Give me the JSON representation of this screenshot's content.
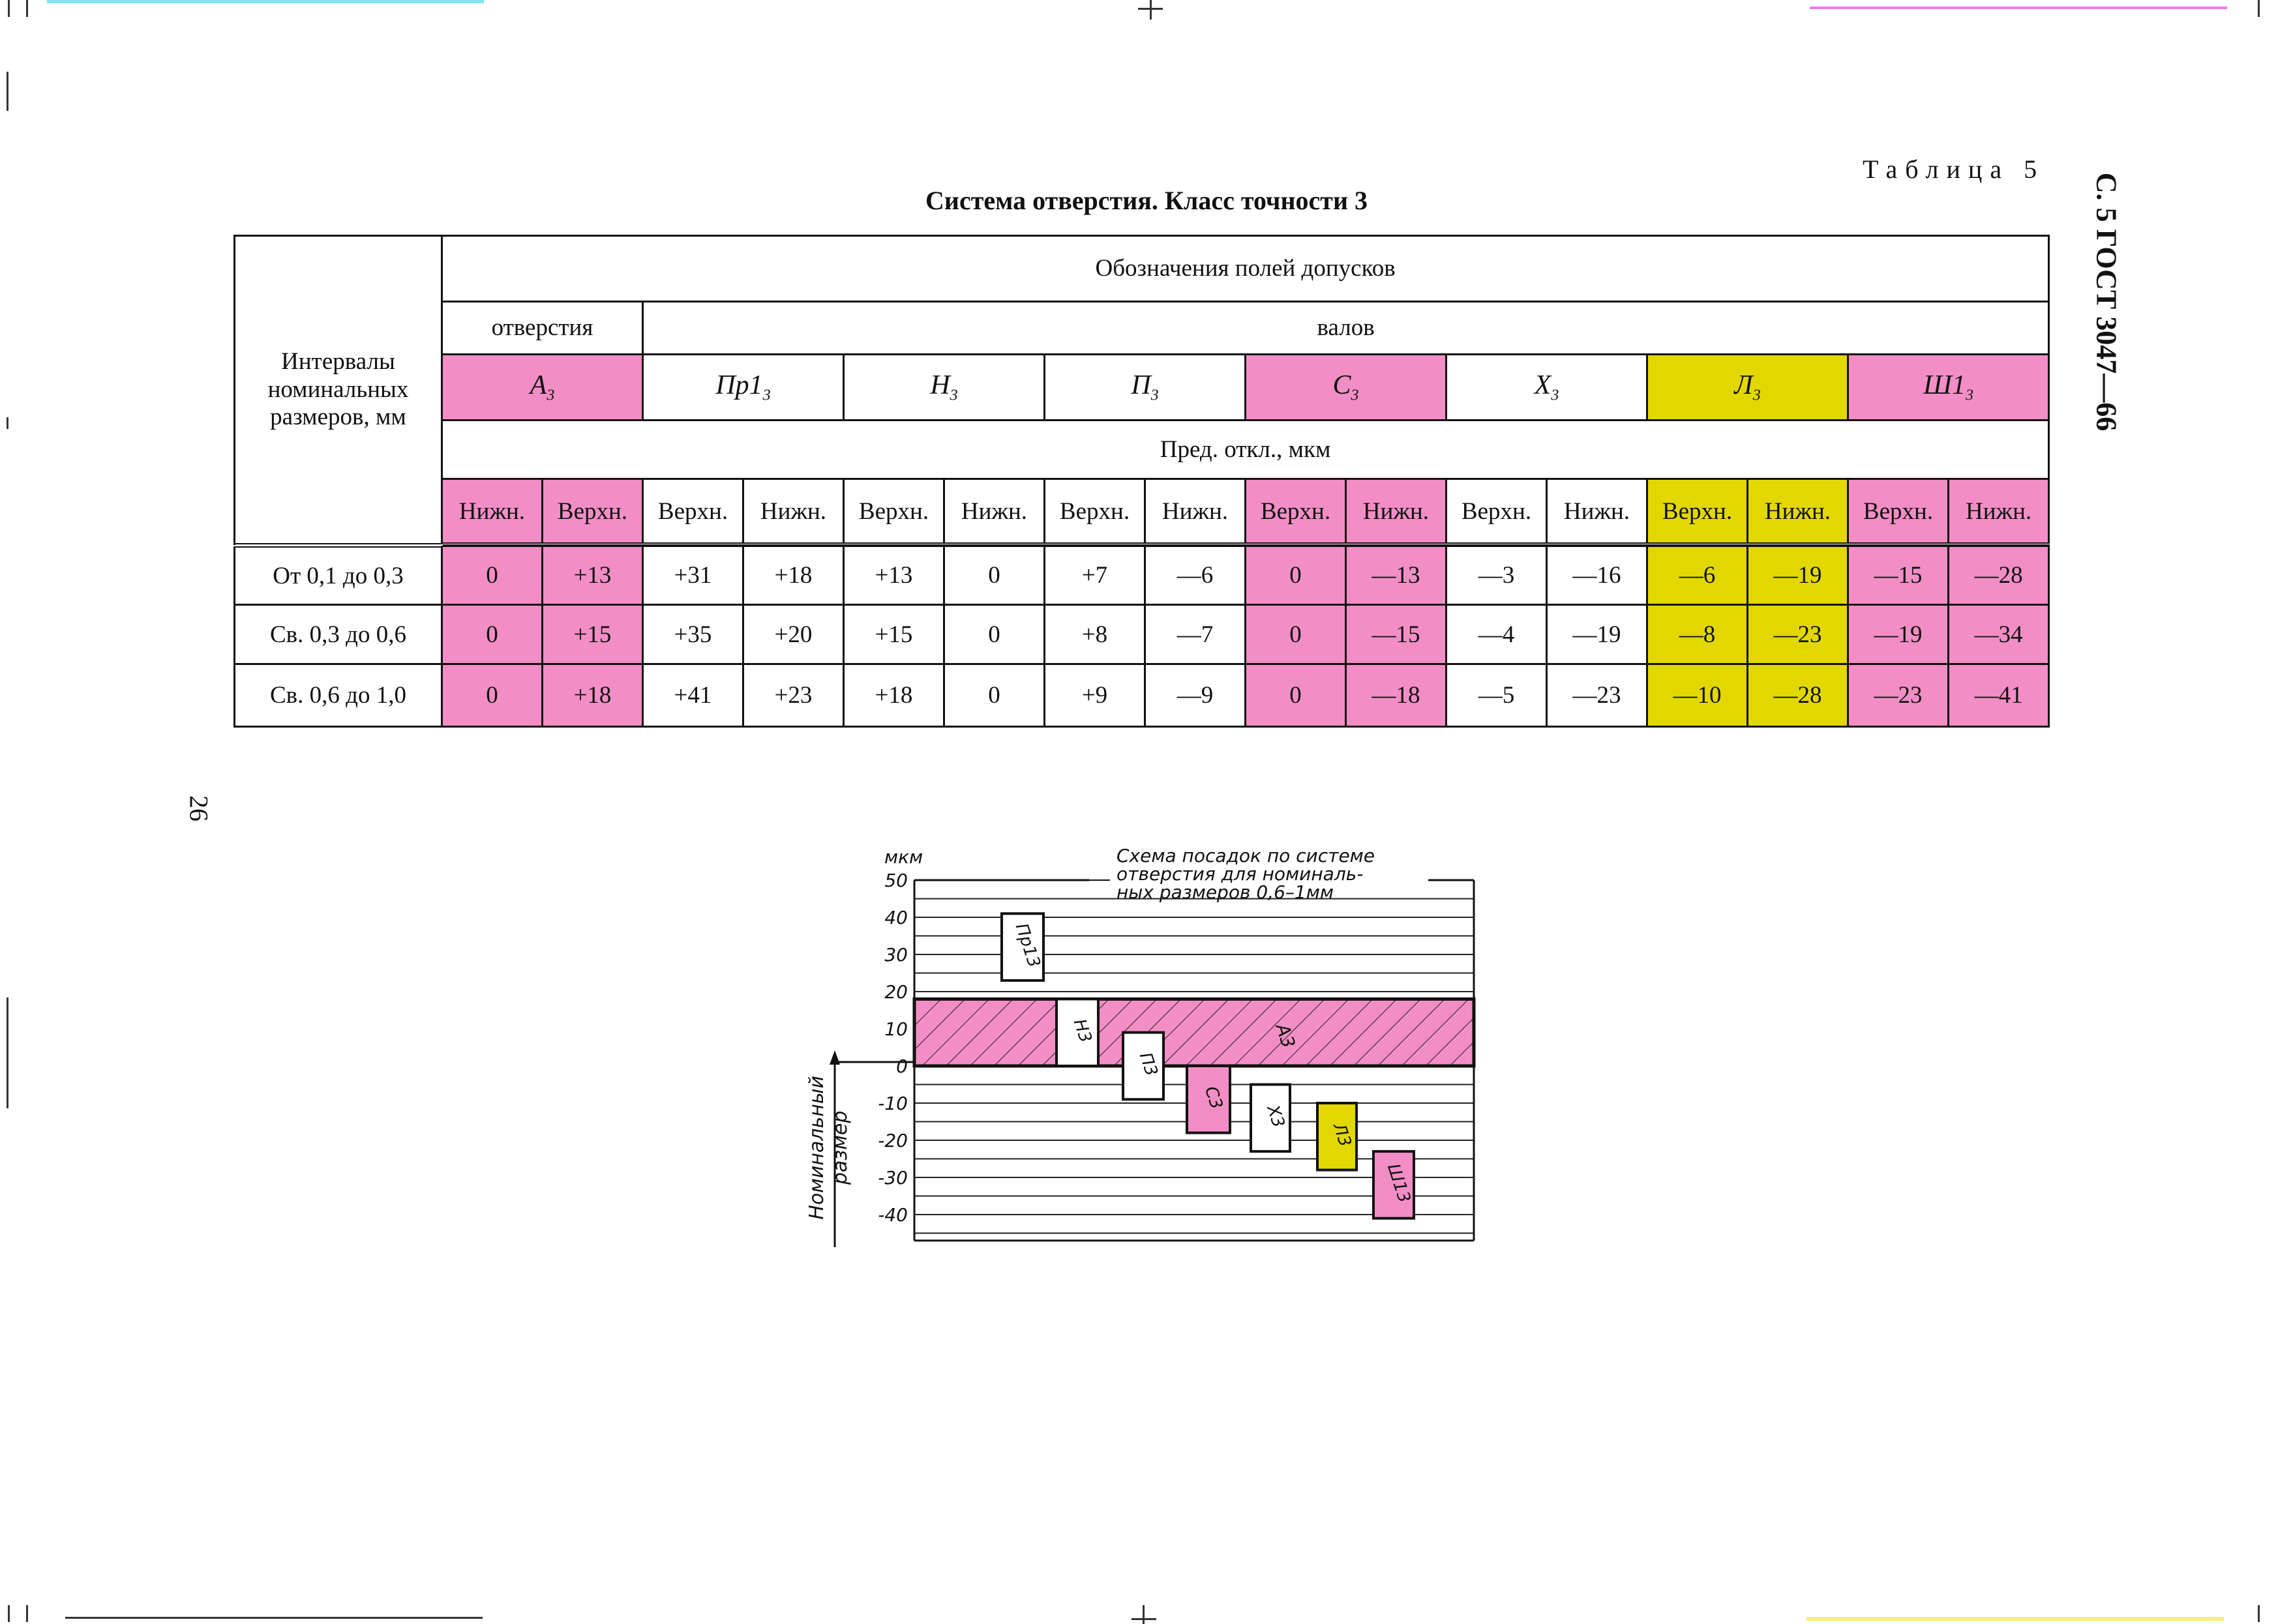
{
  "header": {
    "table_label": "Таблица 5",
    "title": "Система отверстия. Класс точности 3",
    "page_ref": "С. 5 ГОСТ 3047—66",
    "page_number": "26"
  },
  "table": {
    "row_header": "Интервалы номинальных размеров, мм",
    "group_header": "Обозначения полей допусков",
    "holes_header": "отверстия",
    "shafts_header": "валов",
    "fields": [
      {
        "base": "A",
        "sub": "3",
        "color": "#f28ec5"
      },
      {
        "base": "Пр1",
        "sub": "3",
        "color": "#ffffff"
      },
      {
        "base": "Н",
        "sub": "3",
        "color": "#ffffff"
      },
      {
        "base": "П",
        "sub": "3",
        "color": "#ffffff"
      },
      {
        "base": "С",
        "sub": "3",
        "color": "#f28ec5"
      },
      {
        "base": "Х",
        "sub": "3",
        "color": "#ffffff"
      },
      {
        "base": "Л",
        "sub": "3",
        "color": "#e2d800"
      },
      {
        "base": "Ш1",
        "sub": "3",
        "color": "#f28ec5"
      }
    ],
    "deviations_header": "Пред. откл., мкм",
    "sub_headers": [
      "Нижн.",
      "Верхн.",
      "Верхн.",
      "Нижн.",
      "Верхн.",
      "Нижн.",
      "Верхн.",
      "Нижн.",
      "Верхн.",
      "Нижн.",
      "Верхн.",
      "Нижн.",
      "Верхн.",
      "Нижн.",
      "Верхн.",
      "Нижн."
    ],
    "rows": [
      {
        "interval": "От 0,1 до 0,3",
        "values": [
          "0",
          "+13",
          "+31",
          "+18",
          "+13",
          "0",
          "+7",
          "—6",
          "0",
          "—13",
          "—3",
          "—16",
          "—6",
          "—19",
          "—15",
          "—28"
        ]
      },
      {
        "interval": "Св. 0,3 до 0,6",
        "values": [
          "0",
          "+15",
          "+35",
          "+20",
          "+15",
          "0",
          "+8",
          "—7",
          "0",
          "—15",
          "—4",
          "—19",
          "—8",
          "—23",
          "—19",
          "—34"
        ]
      },
      {
        "interval": "Св. 0,6 до 1,0",
        "values": [
          "0",
          "+18",
          "+41",
          "+23",
          "+18",
          "0",
          "+9",
          "—9",
          "0",
          "—18",
          "—5",
          "—23",
          "—10",
          "—28",
          "—23",
          "—41"
        ]
      }
    ]
  },
  "chart_data": {
    "type": "bar",
    "title_lines": [
      "Схема посадок по системе",
      "отверстия для номиналь-",
      "ных размеров 0,6–1мм"
    ],
    "unit": "мкм",
    "ylabel_lines": [
      "Номинальный",
      "размер"
    ],
    "yticks": [
      "50",
      "40",
      "30",
      "20",
      "10",
      "0",
      "-10",
      "-20",
      "-30",
      "-40"
    ],
    "ylim": [
      -47,
      50
    ],
    "hole_field": {
      "name": "A3",
      "lower": 0,
      "upper": 18,
      "color": "#f28ec5"
    },
    "shaft_fields": [
      {
        "name": "Пр13",
        "upper": 41,
        "lower": 23,
        "color": "#ffffff"
      },
      {
        "name": "Н3",
        "upper": 18,
        "lower": 0,
        "color": "#ffffff"
      },
      {
        "name": "П3",
        "upper": 9,
        "lower": -9,
        "color": "#ffffff"
      },
      {
        "name": "С3",
        "upper": 0,
        "lower": -18,
        "color": "#f28ec5"
      },
      {
        "name": "Х3",
        "upper": -5,
        "lower": -23,
        "color": "#ffffff"
      },
      {
        "name": "Л3",
        "upper": -10,
        "lower": -28,
        "color": "#e2d800"
      },
      {
        "name": "Ш13",
        "upper": -23,
        "lower": -41,
        "color": "#f28ec5"
      }
    ]
  }
}
